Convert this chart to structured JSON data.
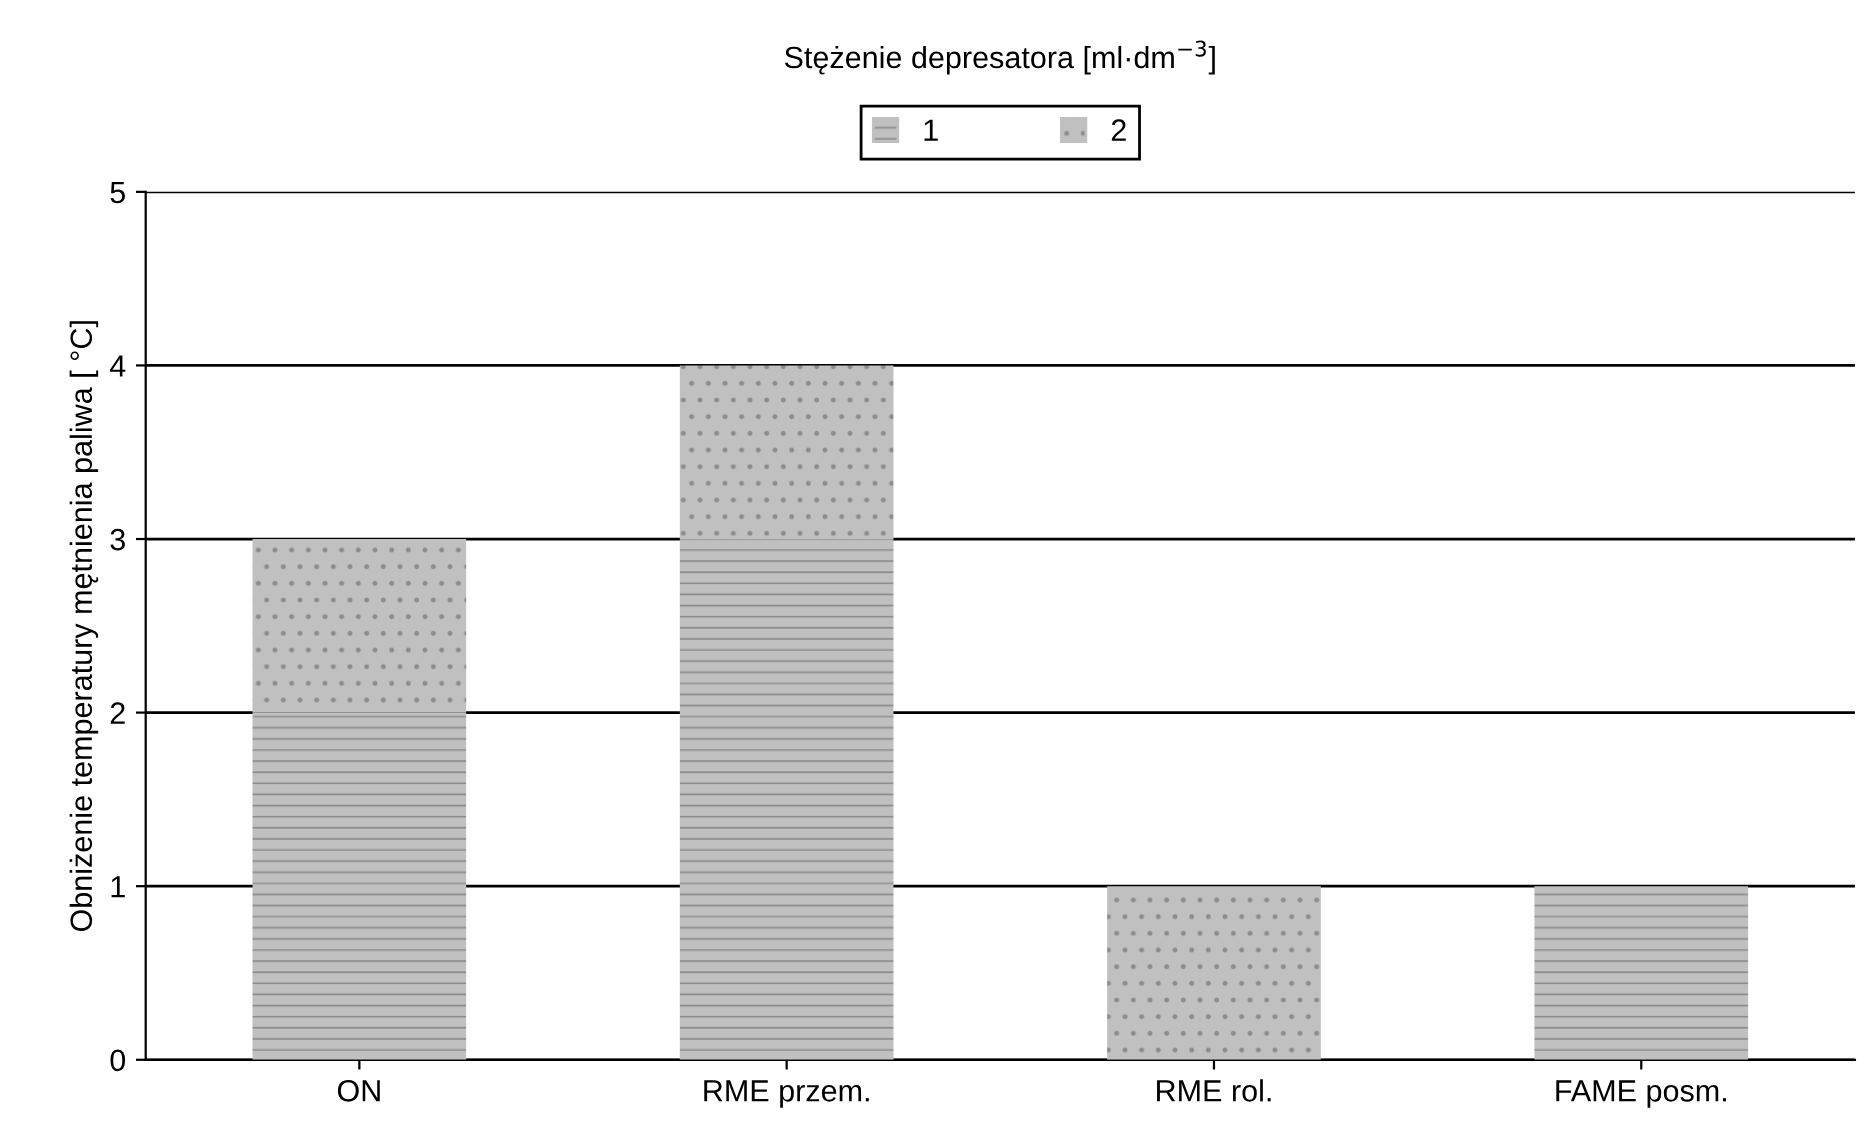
{
  "chart_data": {
    "type": "bar",
    "stacked": true,
    "ylabel": "Obniżenie temperatury mętnienia paliwa [ °C]",
    "legend_title": "Stężenie depresatora [ml·dm$^{−3}$]",
    "categories": [
      "ON",
      "RME przem.",
      "RME rol.",
      "FAME posm."
    ],
    "series": [
      {
        "name": "1",
        "color": "#c0c0c0",
        "values": [
          2,
          3,
          null,
          1
        ]
      },
      {
        "name": "2",
        "color": "#c0c0c0",
        "values": [
          1,
          1,
          1,
          null
        ]
      }
    ],
    "ylim": [
      0,
      5
    ],
    "yticks": [
      0,
      1,
      2,
      3,
      4,
      5
    ],
    "grid": "y",
    "legend": "top"
  }
}
